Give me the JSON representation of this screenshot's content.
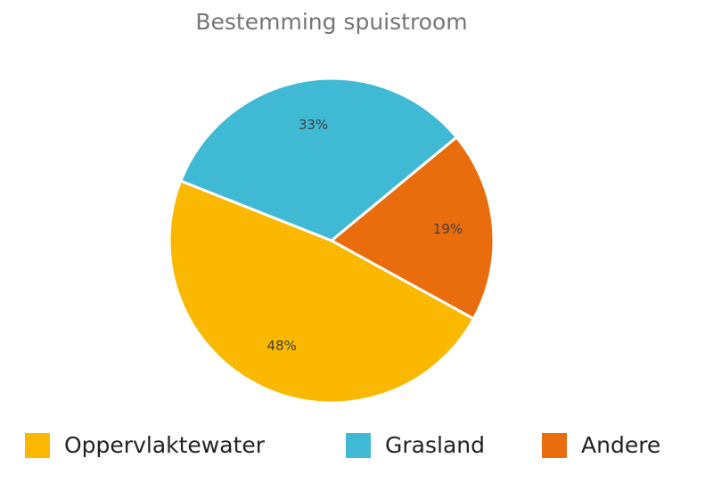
{
  "chart_data": {
    "type": "pie",
    "title": "Bestemming spuistroom",
    "categories": [
      "Oppervlaktewater",
      "Grasland",
      "Andere"
    ],
    "values": [
      48,
      33,
      19
    ],
    "value_labels": [
      "48%",
      "33%",
      "19%"
    ],
    "colors": [
      "#fbb800",
      "#3fb9d4",
      "#e96d0c"
    ],
    "legend": "bottom"
  }
}
